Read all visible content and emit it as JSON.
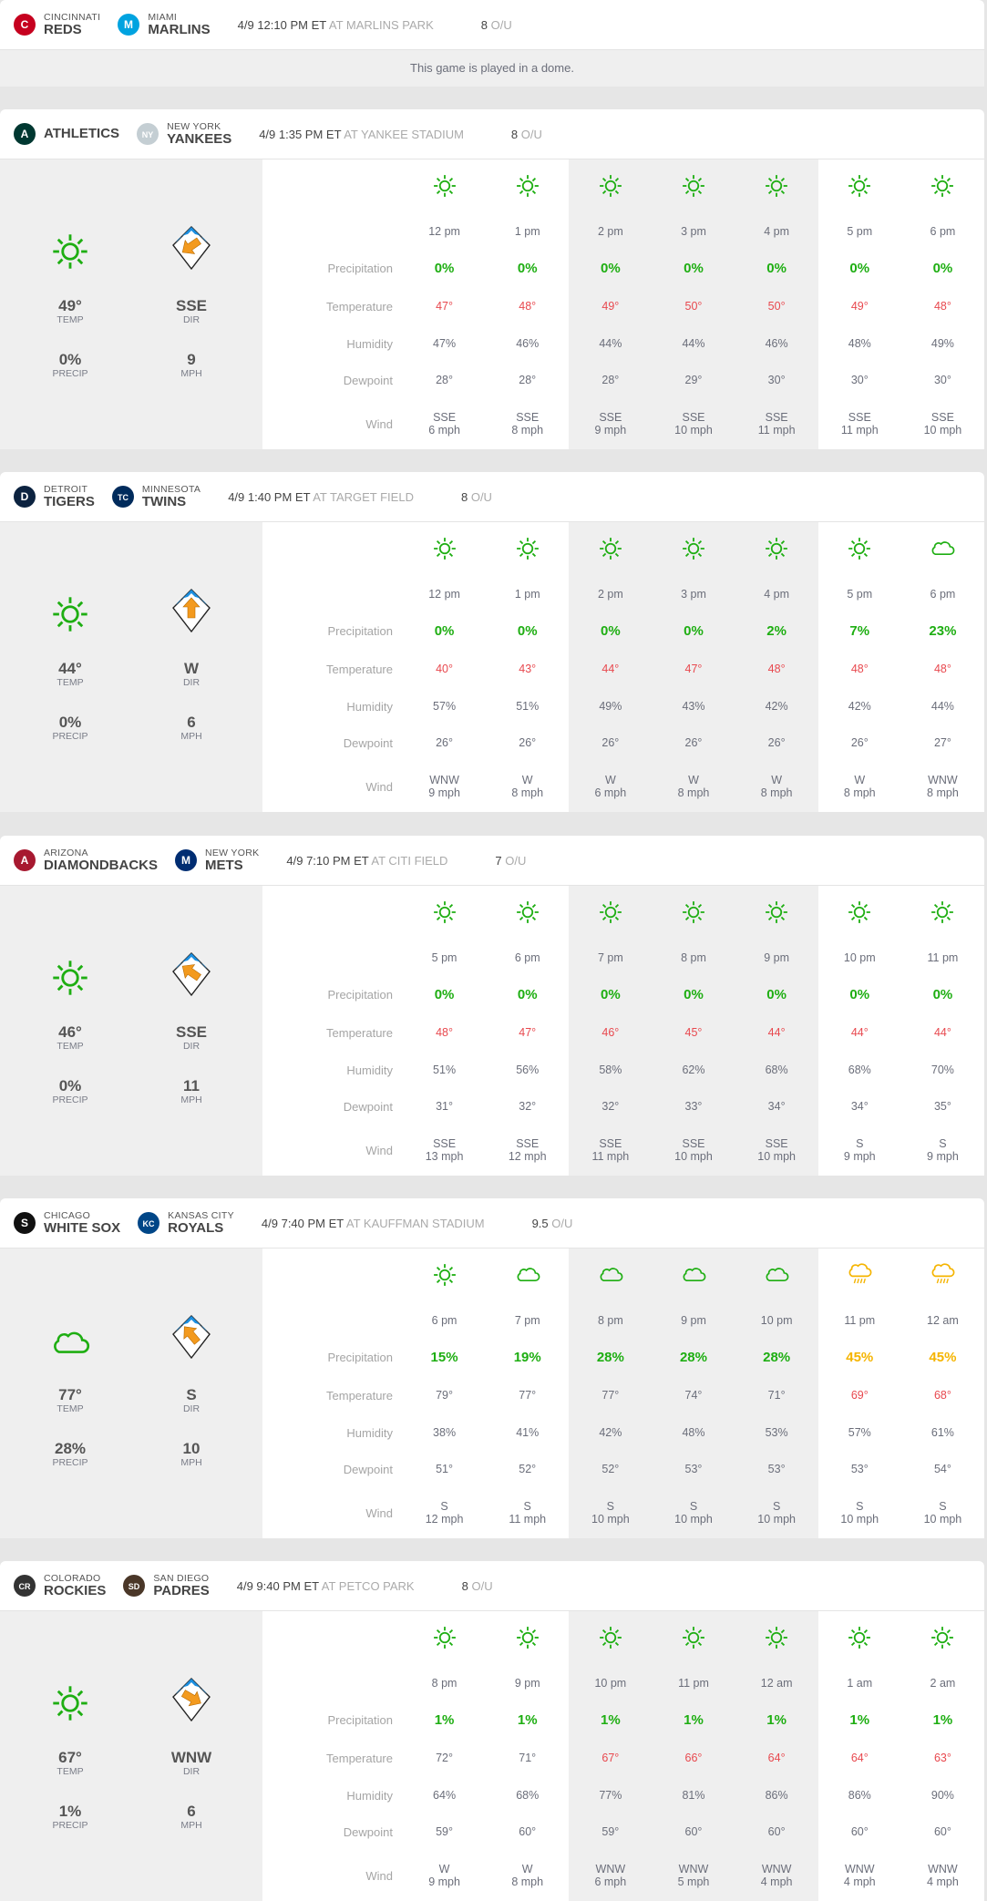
{
  "colors": {
    "green": "#1eae12",
    "orange": "#f5b400",
    "red": "#e8484e",
    "compass_blue": "#1c8fe0",
    "arrow_orange": "#f39a1e"
  },
  "row_labels": {
    "precip": "Precipitation",
    "temp": "Temperature",
    "humidity": "Humidity",
    "dewpoint": "Dewpoint",
    "wind": "Wind"
  },
  "summary_labels": {
    "temp": "TEMP",
    "precip": "PRECIP",
    "dir": "DIR",
    "speed": "MPH"
  },
  "ou_label": "O/U",
  "games": [
    {
      "away": {
        "city": "CINCINNATI",
        "name": "REDS",
        "logo": "reds-logo"
      },
      "home": {
        "city": "MIAMI",
        "name": "MARLINS",
        "logo": "marlins-logo"
      },
      "time": "4/9 12:10 PM ET",
      "venue": "AT MARLINS PARK",
      "ou": "8",
      "dome_note": "This game is played in a dome."
    },
    {
      "away": {
        "city": "",
        "name": "ATHLETICS",
        "logo": "athletics-logo"
      },
      "home": {
        "city": "NEW YORK",
        "name": "YANKEES",
        "logo": "yankees-logo"
      },
      "time": "4/9 1:35 PM ET",
      "venue": "AT YANKEE STADIUM",
      "ou": "8",
      "summary": {
        "icon": "sun",
        "temp": "49°",
        "precip": "0%",
        "dir": "SSE",
        "speed": "9",
        "arrow_deg": 235
      },
      "hours": [
        {
          "icon": "sun",
          "time": "12 pm",
          "precip": "0%",
          "temp": "47°",
          "humidity": "47%",
          "dewpoint": "28°",
          "wind_dir": "SSE",
          "wind_speed": "6 mph"
        },
        {
          "icon": "sun",
          "time": "1 pm",
          "precip": "0%",
          "temp": "48°",
          "humidity": "46%",
          "dewpoint": "28°",
          "wind_dir": "SSE",
          "wind_speed": "8 mph"
        },
        {
          "icon": "sun",
          "time": "2 pm",
          "precip": "0%",
          "temp": "49°",
          "humidity": "44%",
          "dewpoint": "28°",
          "wind_dir": "SSE",
          "wind_speed": "9 mph"
        },
        {
          "icon": "sun",
          "time": "3 pm",
          "precip": "0%",
          "temp": "50°",
          "humidity": "44%",
          "dewpoint": "29°",
          "wind_dir": "SSE",
          "wind_speed": "10 mph"
        },
        {
          "icon": "sun",
          "time": "4 pm",
          "precip": "0%",
          "temp": "50°",
          "humidity": "46%",
          "dewpoint": "30°",
          "wind_dir": "SSE",
          "wind_speed": "11 mph"
        },
        {
          "icon": "sun",
          "time": "5 pm",
          "precip": "0%",
          "temp": "49°",
          "humidity": "48%",
          "dewpoint": "30°",
          "wind_dir": "SSE",
          "wind_speed": "11 mph"
        },
        {
          "icon": "sun",
          "time": "6 pm",
          "precip": "0%",
          "temp": "48°",
          "humidity": "49%",
          "dewpoint": "30°",
          "wind_dir": "SSE",
          "wind_speed": "10 mph"
        }
      ]
    },
    {
      "away": {
        "city": "DETROIT",
        "name": "TIGERS",
        "logo": "tigers-logo"
      },
      "home": {
        "city": "MINNESOTA",
        "name": "TWINS",
        "logo": "twins-logo"
      },
      "time": "4/9 1:40 PM ET",
      "venue": "AT TARGET FIELD",
      "ou": "8",
      "summary": {
        "icon": "sun",
        "temp": "44°",
        "precip": "0%",
        "dir": "W",
        "speed": "6",
        "arrow_deg": 0
      },
      "hours": [
        {
          "icon": "sun",
          "time": "12 pm",
          "precip": "0%",
          "temp": "40°",
          "humidity": "57%",
          "dewpoint": "26°",
          "wind_dir": "WNW",
          "wind_speed": "9 mph"
        },
        {
          "icon": "sun",
          "time": "1 pm",
          "precip": "0%",
          "temp": "43°",
          "humidity": "51%",
          "dewpoint": "26°",
          "wind_dir": "W",
          "wind_speed": "8 mph"
        },
        {
          "icon": "sun",
          "time": "2 pm",
          "precip": "0%",
          "temp": "44°",
          "humidity": "49%",
          "dewpoint": "26°",
          "wind_dir": "W",
          "wind_speed": "6 mph"
        },
        {
          "icon": "sun",
          "time": "3 pm",
          "precip": "0%",
          "temp": "47°",
          "humidity": "43%",
          "dewpoint": "26°",
          "wind_dir": "W",
          "wind_speed": "8 mph"
        },
        {
          "icon": "sun",
          "time": "4 pm",
          "precip": "2%",
          "temp": "48°",
          "humidity": "42%",
          "dewpoint": "26°",
          "wind_dir": "W",
          "wind_speed": "8 mph"
        },
        {
          "icon": "sun",
          "time": "5 pm",
          "precip": "7%",
          "temp": "48°",
          "humidity": "42%",
          "dewpoint": "26°",
          "wind_dir": "W",
          "wind_speed": "8 mph"
        },
        {
          "icon": "cloud",
          "time": "6 pm",
          "precip": "23%",
          "temp": "48°",
          "humidity": "44%",
          "dewpoint": "27°",
          "wind_dir": "WNW",
          "wind_speed": "8 mph"
        }
      ]
    },
    {
      "away": {
        "city": "ARIZONA",
        "name": "DIAMONDBACKS",
        "logo": "diamondbacks-logo"
      },
      "home": {
        "city": "NEW YORK",
        "name": "METS",
        "logo": "mets-logo"
      },
      "time": "4/9 7:10 PM ET",
      "venue": "AT CITI FIELD",
      "ou": "7",
      "summary": {
        "icon": "sun",
        "temp": "46°",
        "precip": "0%",
        "dir": "SSE",
        "speed": "11",
        "arrow_deg": 305
      },
      "hours": [
        {
          "icon": "sun",
          "time": "5 pm",
          "precip": "0%",
          "temp": "48°",
          "humidity": "51%",
          "dewpoint": "31°",
          "wind_dir": "SSE",
          "wind_speed": "13 mph"
        },
        {
          "icon": "sun",
          "time": "6 pm",
          "precip": "0%",
          "temp": "47°",
          "humidity": "56%",
          "dewpoint": "32°",
          "wind_dir": "SSE",
          "wind_speed": "12 mph"
        },
        {
          "icon": "sun",
          "time": "7 pm",
          "precip": "0%",
          "temp": "46°",
          "humidity": "58%",
          "dewpoint": "32°",
          "wind_dir": "SSE",
          "wind_speed": "11 mph"
        },
        {
          "icon": "sun",
          "time": "8 pm",
          "precip": "0%",
          "temp": "45°",
          "humidity": "62%",
          "dewpoint": "33°",
          "wind_dir": "SSE",
          "wind_speed": "10 mph"
        },
        {
          "icon": "sun",
          "time": "9 pm",
          "precip": "0%",
          "temp": "44°",
          "humidity": "68%",
          "dewpoint": "34°",
          "wind_dir": "SSE",
          "wind_speed": "10 mph"
        },
        {
          "icon": "sun",
          "time": "10 pm",
          "precip": "0%",
          "temp": "44°",
          "humidity": "68%",
          "dewpoint": "34°",
          "wind_dir": "S",
          "wind_speed": "9 mph"
        },
        {
          "icon": "sun",
          "time": "11 pm",
          "precip": "0%",
          "temp": "44°",
          "humidity": "70%",
          "dewpoint": "35°",
          "wind_dir": "S",
          "wind_speed": "9 mph"
        }
      ]
    },
    {
      "away": {
        "city": "CHICAGO",
        "name": "WHITE SOX",
        "logo": "white-sox-logo"
      },
      "home": {
        "city": "KANSAS CITY",
        "name": "ROYALS",
        "logo": "royals-logo"
      },
      "time": "4/9 7:40 PM ET",
      "venue": "AT KAUFFMAN STADIUM",
      "ou": "9.5",
      "summary": {
        "icon": "cloud",
        "temp": "77°",
        "precip": "28%",
        "dir": "S",
        "speed": "10",
        "arrow_deg": 320
      },
      "hours": [
        {
          "icon": "sun",
          "time": "6 pm",
          "precip": "15%",
          "temp": "79°",
          "humidity": "38%",
          "dewpoint": "51°",
          "wind_dir": "S",
          "wind_speed": "12 mph"
        },
        {
          "icon": "cloud",
          "time": "7 pm",
          "precip": "19%",
          "temp": "77°",
          "humidity": "41%",
          "dewpoint": "52°",
          "wind_dir": "S",
          "wind_speed": "11 mph"
        },
        {
          "icon": "cloud",
          "time": "8 pm",
          "precip": "28%",
          "temp": "77°",
          "humidity": "42%",
          "dewpoint": "52°",
          "wind_dir": "S",
          "wind_speed": "10 mph"
        },
        {
          "icon": "cloud",
          "time": "9 pm",
          "precip": "28%",
          "temp": "74°",
          "humidity": "48%",
          "dewpoint": "53°",
          "wind_dir": "S",
          "wind_speed": "10 mph"
        },
        {
          "icon": "cloud",
          "time": "10 pm",
          "precip": "28%",
          "temp": "71°",
          "humidity": "53%",
          "dewpoint": "53°",
          "wind_dir": "S",
          "wind_speed": "10 mph"
        },
        {
          "icon": "rain",
          "time": "11 pm",
          "precip": "45%",
          "temp": "69°",
          "humidity": "57%",
          "dewpoint": "53°",
          "wind_dir": "S",
          "wind_speed": "10 mph"
        },
        {
          "icon": "rain",
          "time": "12 am",
          "precip": "45%",
          "temp": "68°",
          "humidity": "61%",
          "dewpoint": "54°",
          "wind_dir": "S",
          "wind_speed": "10 mph"
        }
      ]
    },
    {
      "away": {
        "city": "COLORADO",
        "name": "ROCKIES",
        "logo": "rockies-logo"
      },
      "home": {
        "city": "SAN DIEGO",
        "name": "PADRES",
        "logo": "padres-logo"
      },
      "time": "4/9 9:40 PM ET",
      "venue": "AT PETCO PARK",
      "ou": "8",
      "summary": {
        "icon": "sun",
        "temp": "67°",
        "precip": "1%",
        "dir": "WNW",
        "speed": "6",
        "arrow_deg": 120
      },
      "hours": [
        {
          "icon": "sun",
          "time": "8 pm",
          "precip": "1%",
          "temp": "72°",
          "humidity": "64%",
          "dewpoint": "59°",
          "wind_dir": "W",
          "wind_speed": "9 mph"
        },
        {
          "icon": "sun",
          "time": "9 pm",
          "precip": "1%",
          "temp": "71°",
          "humidity": "68%",
          "dewpoint": "60°",
          "wind_dir": "W",
          "wind_speed": "8 mph"
        },
        {
          "icon": "sun",
          "time": "10 pm",
          "precip": "1%",
          "temp": "67°",
          "humidity": "77%",
          "dewpoint": "59°",
          "wind_dir": "WNW",
          "wind_speed": "6 mph"
        },
        {
          "icon": "sun",
          "time": "11 pm",
          "precip": "1%",
          "temp": "66°",
          "humidity": "81%",
          "dewpoint": "60°",
          "wind_dir": "WNW",
          "wind_speed": "5 mph"
        },
        {
          "icon": "sun",
          "time": "12 am",
          "precip": "1%",
          "temp": "64°",
          "humidity": "86%",
          "dewpoint": "60°",
          "wind_dir": "WNW",
          "wind_speed": "4 mph"
        },
        {
          "icon": "sun",
          "time": "1 am",
          "precip": "1%",
          "temp": "64°",
          "humidity": "86%",
          "dewpoint": "60°",
          "wind_dir": "WNW",
          "wind_speed": "4 mph"
        },
        {
          "icon": "sun",
          "time": "2 am",
          "precip": "1%",
          "temp": "63°",
          "humidity": "90%",
          "dewpoint": "60°",
          "wind_dir": "WNW",
          "wind_speed": "4 mph"
        }
      ]
    }
  ]
}
